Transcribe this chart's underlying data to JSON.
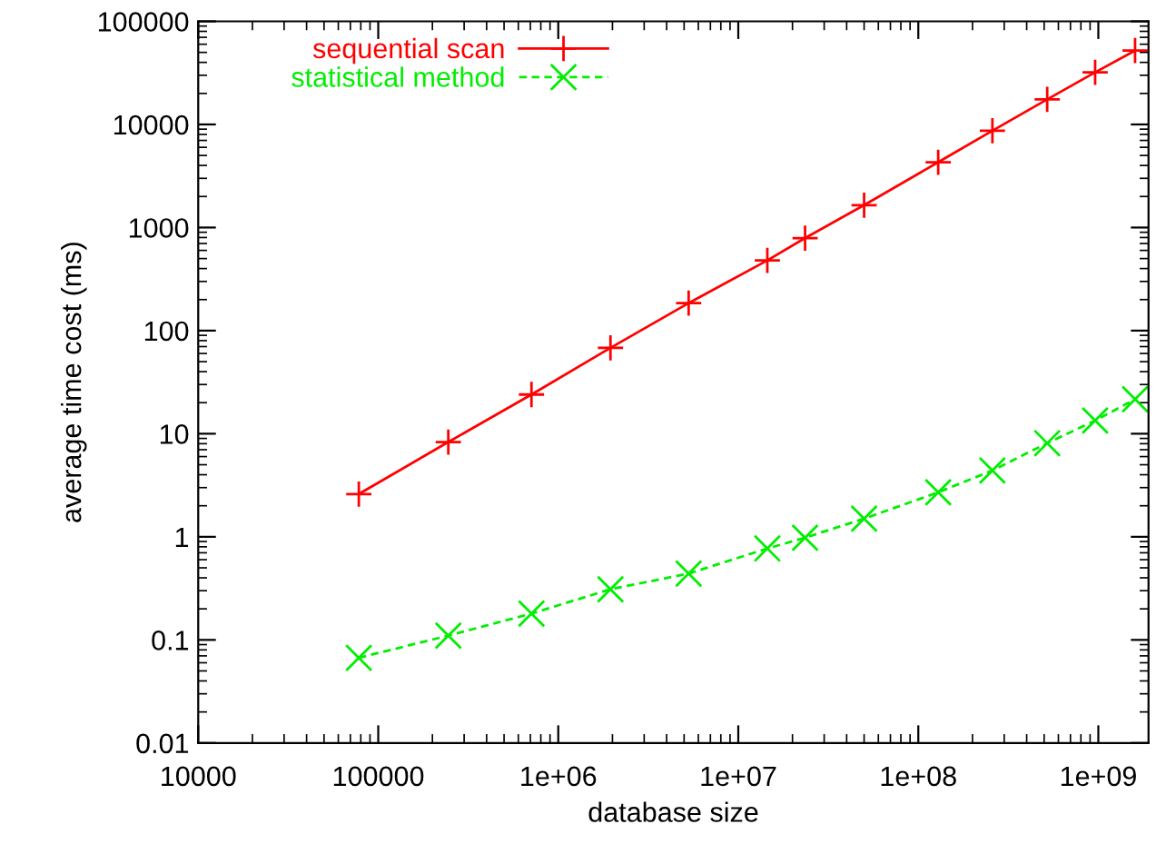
{
  "chart_data": {
    "type": "line",
    "xlabel": "database size",
    "ylabel": "average time cost (ms)",
    "log": "xy",
    "grid": false,
    "legend": "top left",
    "xlim": [
      10000,
      1900000000
    ],
    "ylim": [
      0.01,
      100000
    ],
    "xticks": [
      {
        "value": 10000,
        "label": "10000"
      },
      {
        "value": 100000,
        "label": "100000"
      },
      {
        "value": 1000000,
        "label": "1e+06"
      },
      {
        "value": 10000000,
        "label": "1e+07"
      },
      {
        "value": 100000000,
        "label": "1e+08"
      },
      {
        "value": 1000000000,
        "label": "1e+09"
      }
    ],
    "yticks": [
      {
        "value": 0.01,
        "label": "0.01"
      },
      {
        "value": 0.1,
        "label": "0.1"
      },
      {
        "value": 1,
        "label": "1"
      },
      {
        "value": 10,
        "label": "10"
      },
      {
        "value": 100,
        "label": "100"
      },
      {
        "value": 1000,
        "label": "1000"
      },
      {
        "value": 10000,
        "label": "10000"
      },
      {
        "value": 100000,
        "label": "100000"
      }
    ],
    "x": [
      78000,
      245000,
      710000,
      1950000,
      5300000,
      14500000,
      23500000,
      50000000,
      129000000,
      258000000,
      520000000,
      960000000,
      1600000000
    ],
    "series": [
      {
        "name": "sequential scan",
        "color": "#ff0000",
        "marker": "plus",
        "line_style": "solid",
        "values": [
          2.6,
          8.3,
          24,
          68,
          185,
          480,
          790,
          1650,
          4300,
          8700,
          17500,
          32000,
          52000
        ]
      },
      {
        "name": "statistical method",
        "color": "#00ee00",
        "marker": "cross",
        "line_style": "dashed",
        "values": [
          0.067,
          0.11,
          0.18,
          0.31,
          0.44,
          0.77,
          0.98,
          1.5,
          2.7,
          4.4,
          8.1,
          13.4,
          21.6
        ]
      }
    ]
  }
}
